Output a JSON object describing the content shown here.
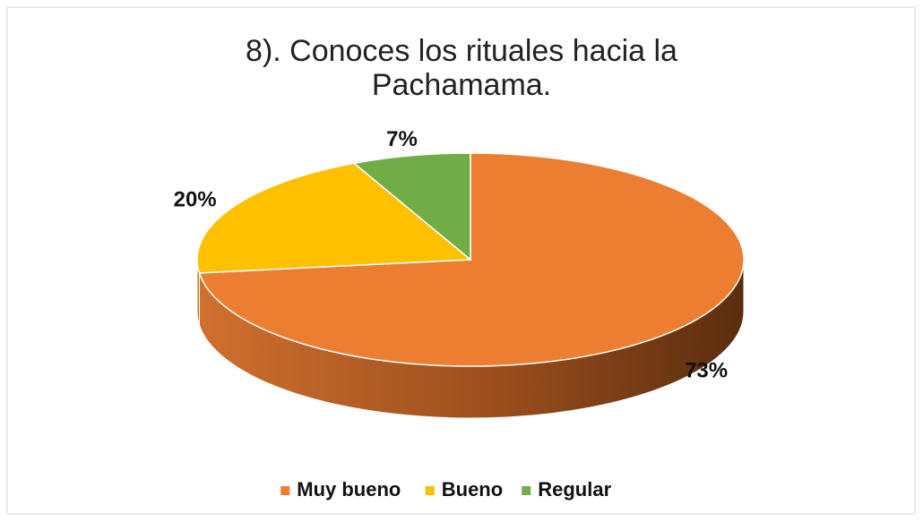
{
  "chart_data": {
    "type": "pie3d",
    "title": "8). Conoces los rituales hacia la Pachamama.",
    "categories": [
      "Muy bueno",
      "Bueno",
      "Regular"
    ],
    "values": [
      73,
      20,
      7
    ],
    "value_labels": [
      "73%",
      "20%",
      "7%"
    ],
    "colors": [
      "#ed7d31",
      "#ffc000",
      "#70ad47"
    ],
    "legend": "bottom"
  }
}
